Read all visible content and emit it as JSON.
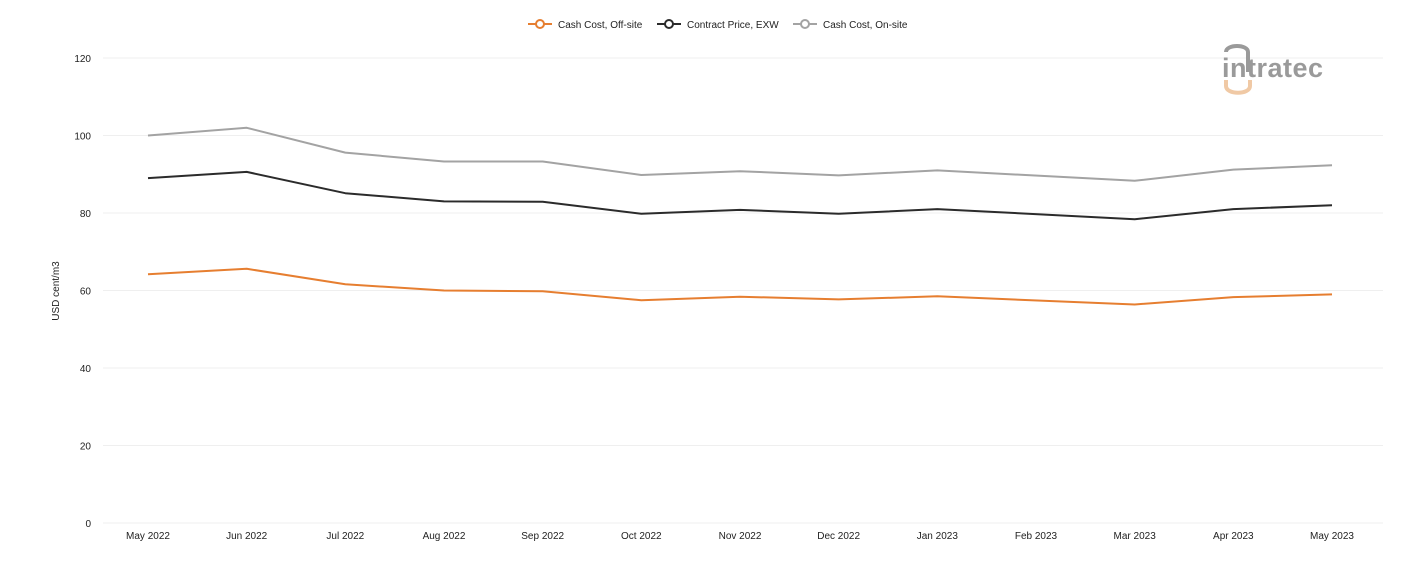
{
  "chart_data": {
    "type": "line",
    "categories": [
      "May 2022",
      "Jun 2022",
      "Jul 2022",
      "Aug 2022",
      "Sep 2022",
      "Oct 2022",
      "Nov 2022",
      "Dec 2022",
      "Jan 2023",
      "Feb 2023",
      "Mar 2023",
      "Apr 2023",
      "May 2023"
    ],
    "series": [
      {
        "name": "Cash Cost, Off-site",
        "color": "#e67e30",
        "values": [
          64.2,
          65.6,
          61.6,
          60.0,
          59.8,
          57.5,
          58.4,
          57.7,
          58.5,
          null,
          56.4,
          58.3,
          59.0
        ]
      },
      {
        "name": "Contract Price, EXW",
        "color": "#2b2b2b",
        "values": [
          89.0,
          90.6,
          85.1,
          83.0,
          82.9,
          79.8,
          80.8,
          79.8,
          81.0,
          null,
          78.4,
          81.0,
          82.0
        ]
      },
      {
        "name": "Cash Cost, On-site",
        "color": "#a3a3a3",
        "values": [
          100.0,
          102.0,
          95.6,
          93.3,
          93.3,
          89.8,
          90.8,
          89.7,
          91.0,
          null,
          88.3,
          91.2,
          92.3
        ]
      }
    ],
    "ylabel": "USD cent/m3",
    "ylim": [
      0,
      120
    ],
    "yticks": [
      0,
      20,
      40,
      60,
      80,
      100,
      120
    ],
    "grid": true,
    "legend_position": "top-center"
  },
  "logo": {
    "text": "intratec"
  }
}
